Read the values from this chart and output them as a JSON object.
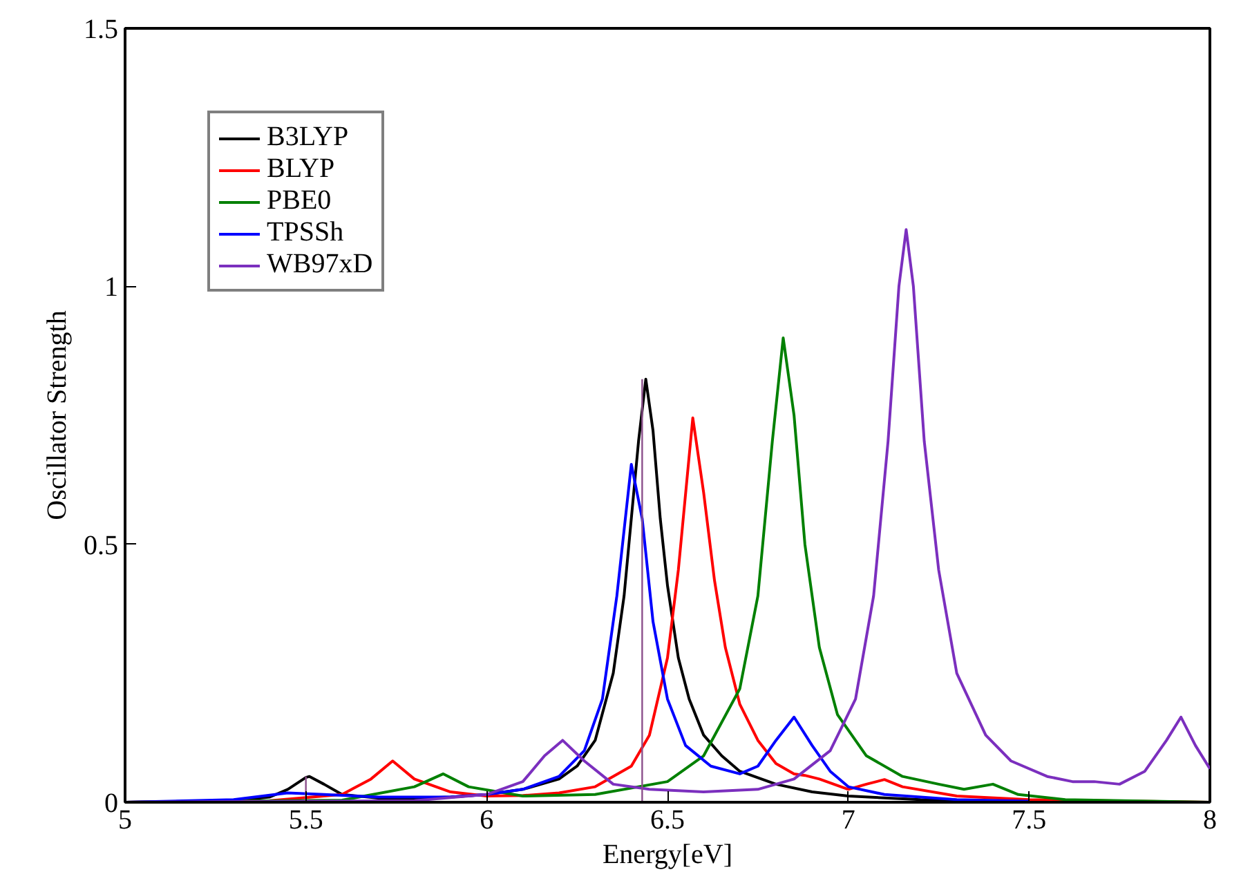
{
  "chart_data": {
    "type": "line",
    "xlabel": "Energy[eV]",
    "ylabel": "Oscillator Strength",
    "xlim": [
      5,
      8
    ],
    "ylim": [
      0,
      1.5
    ],
    "xticks": [
      5,
      5.5,
      6,
      6.5,
      7,
      7.5,
      8
    ],
    "yticks": [
      0,
      0.5,
      1,
      1.5
    ],
    "grid": false,
    "legend": "top left",
    "marker": "none",
    "line_style": "solid",
    "series": [
      {
        "name": "B3LYP",
        "color": "#000000",
        "x": [
          5.0,
          5.3,
          5.4,
          5.45,
          5.5,
          5.51,
          5.55,
          5.6,
          5.7,
          5.8,
          5.9,
          6.0,
          6.1,
          6.2,
          6.25,
          6.3,
          6.35,
          6.38,
          6.4,
          6.42,
          6.44,
          6.46,
          6.48,
          6.5,
          6.53,
          6.56,
          6.6,
          6.65,
          6.7,
          6.8,
          6.9,
          7.0,
          7.2,
          7.5,
          8.0
        ],
        "values": [
          0,
          0.003,
          0.01,
          0.025,
          0.048,
          0.05,
          0.035,
          0.015,
          0.008,
          0.008,
          0.01,
          0.015,
          0.025,
          0.045,
          0.07,
          0.12,
          0.25,
          0.4,
          0.55,
          0.7,
          0.82,
          0.72,
          0.55,
          0.42,
          0.28,
          0.2,
          0.13,
          0.09,
          0.06,
          0.035,
          0.02,
          0.012,
          0.005,
          0.002,
          0
        ]
      },
      {
        "name": "BLYP",
        "color": "#ff0000",
        "x": [
          5.0,
          5.4,
          5.6,
          5.68,
          5.74,
          5.8,
          5.9,
          6.0,
          6.1,
          6.2,
          6.3,
          6.4,
          6.45,
          6.5,
          6.53,
          6.57,
          6.6,
          6.63,
          6.66,
          6.7,
          6.75,
          6.8,
          6.85,
          6.88,
          6.92,
          7.0,
          7.05,
          7.1,
          7.15,
          7.3,
          7.5,
          8.0
        ],
        "values": [
          0,
          0.003,
          0.015,
          0.045,
          0.08,
          0.045,
          0.02,
          0.012,
          0.013,
          0.018,
          0.03,
          0.07,
          0.13,
          0.28,
          0.45,
          0.745,
          0.6,
          0.43,
          0.3,
          0.19,
          0.12,
          0.075,
          0.055,
          0.052,
          0.045,
          0.025,
          0.035,
          0.044,
          0.03,
          0.012,
          0.005,
          0
        ]
      },
      {
        "name": "PBE0",
        "color": "#008000",
        "x": [
          5.0,
          5.6,
          5.8,
          5.88,
          5.95,
          6.1,
          6.3,
          6.5,
          6.6,
          6.7,
          6.75,
          6.79,
          6.82,
          6.85,
          6.88,
          6.92,
          6.97,
          7.05,
          7.15,
          7.25,
          7.32,
          7.4,
          7.47,
          7.6,
          8.0
        ],
        "values": [
          0,
          0.004,
          0.03,
          0.055,
          0.03,
          0.012,
          0.015,
          0.04,
          0.09,
          0.22,
          0.4,
          0.7,
          0.9,
          0.75,
          0.5,
          0.3,
          0.17,
          0.09,
          0.05,
          0.035,
          0.025,
          0.035,
          0.015,
          0.005,
          0
        ]
      },
      {
        "name": "TPSSh",
        "color": "#0000ff",
        "x": [
          5.0,
          5.3,
          5.45,
          5.55,
          5.7,
          5.9,
          6.0,
          6.1,
          6.2,
          6.27,
          6.32,
          6.36,
          6.4,
          6.43,
          6.46,
          6.5,
          6.55,
          6.62,
          6.7,
          6.75,
          6.8,
          6.85,
          6.9,
          6.95,
          7.0,
          7.1,
          7.3,
          7.5
        ],
        "values": [
          0,
          0.005,
          0.018,
          0.015,
          0.01,
          0.01,
          0.015,
          0.025,
          0.05,
          0.1,
          0.2,
          0.4,
          0.655,
          0.55,
          0.35,
          0.2,
          0.11,
          0.07,
          0.055,
          0.07,
          0.12,
          0.165,
          0.11,
          0.06,
          0.03,
          0.015,
          0.005,
          0.002
        ]
      },
      {
        "name": "WB97xD",
        "color": "#7b2fbe",
        "x": [
          5.0,
          5.8,
          6.0,
          6.1,
          6.16,
          6.21,
          6.27,
          6.35,
          6.45,
          6.6,
          6.75,
          6.85,
          6.95,
          7.02,
          7.07,
          7.11,
          7.14,
          7.16,
          7.18,
          7.21,
          7.25,
          7.3,
          7.38,
          7.45,
          7.55,
          7.62,
          7.68,
          7.75,
          7.82,
          7.88,
          7.92,
          7.96,
          8.0
        ],
        "values": [
          0,
          0.003,
          0.015,
          0.04,
          0.09,
          0.12,
          0.08,
          0.035,
          0.025,
          0.02,
          0.025,
          0.045,
          0.1,
          0.2,
          0.4,
          0.7,
          1.0,
          1.11,
          1.0,
          0.7,
          0.45,
          0.25,
          0.13,
          0.08,
          0.05,
          0.04,
          0.04,
          0.035,
          0.06,
          0.12,
          0.165,
          0.11,
          0.065
        ]
      },
      {
        "color": "#8b4f8b",
        "x": [
          5.5,
          5.5
        ],
        "values": [
          0,
          0.05
        ]
      },
      {
        "color": "#8b4f8b",
        "x": [
          6.43,
          6.43
        ],
        "values": [
          0,
          0.82
        ]
      }
    ]
  }
}
